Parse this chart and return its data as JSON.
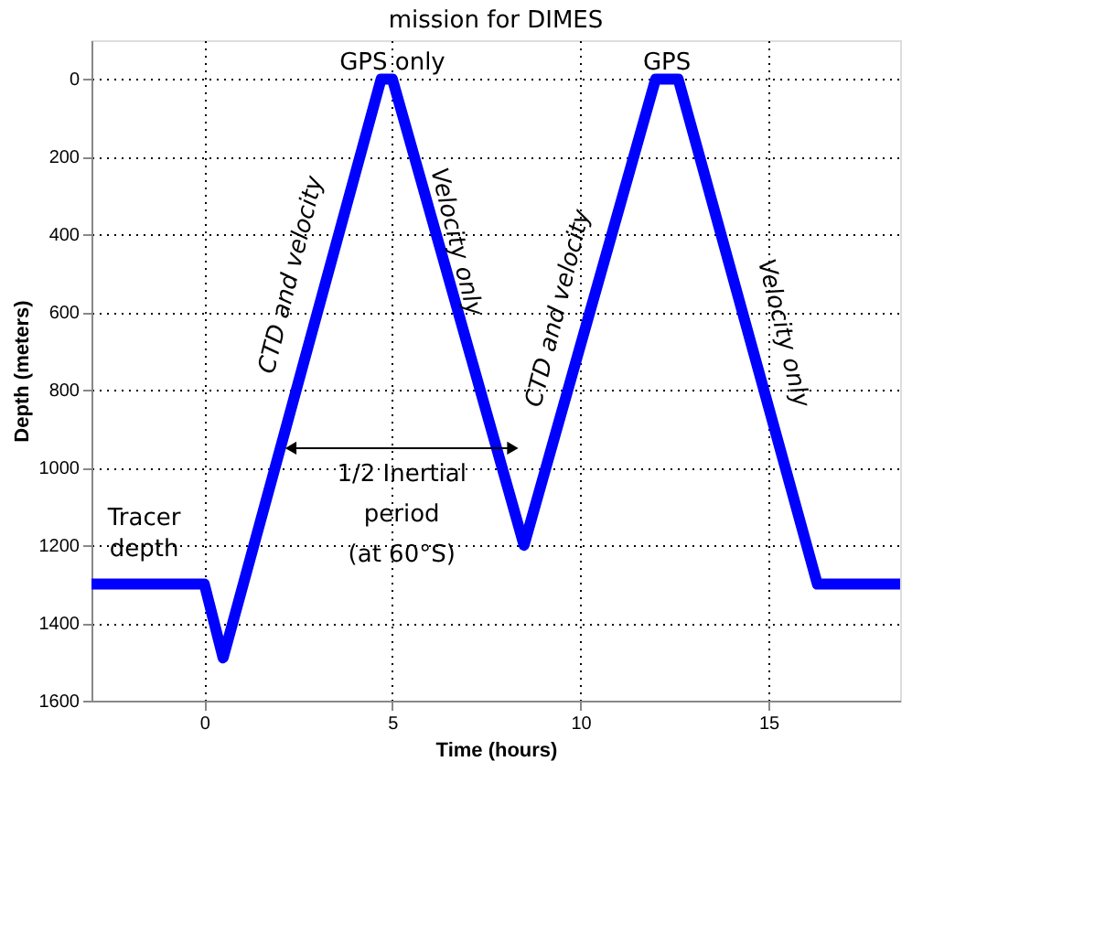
{
  "chart_data": {
    "type": "line",
    "title": "mission for DIMES",
    "xlabel": "Time (hours)",
    "ylabel": "Depth (meters)",
    "x": [
      -3,
      0,
      0.5,
      4.7,
      5.0,
      8.5,
      12.0,
      12.6,
      16.3,
      18.5
    ],
    "series": [
      {
        "color": "#0000ff",
        "values": [
          1300,
          1300,
          1490,
          0,
          0,
          1200,
          0,
          0,
          1300,
          1300
        ]
      }
    ],
    "xlim": [
      -3,
      18.5
    ],
    "xticks": [
      0,
      5,
      10,
      15
    ],
    "ylim": [
      1600,
      -100
    ],
    "yticks": [
      0,
      200,
      400,
      600,
      800,
      1000,
      1200,
      1400,
      1600
    ],
    "grid": true,
    "marker": "none",
    "line_style": "solid",
    "annotations": [
      "GPS only",
      "GPS",
      "CTD and velocity",
      "Velocity only",
      "CTD and velocity",
      "Velocity only",
      "Tracer\ndepth",
      "1/2 Inertial\nperiod\n(at 60°S)"
    ]
  }
}
